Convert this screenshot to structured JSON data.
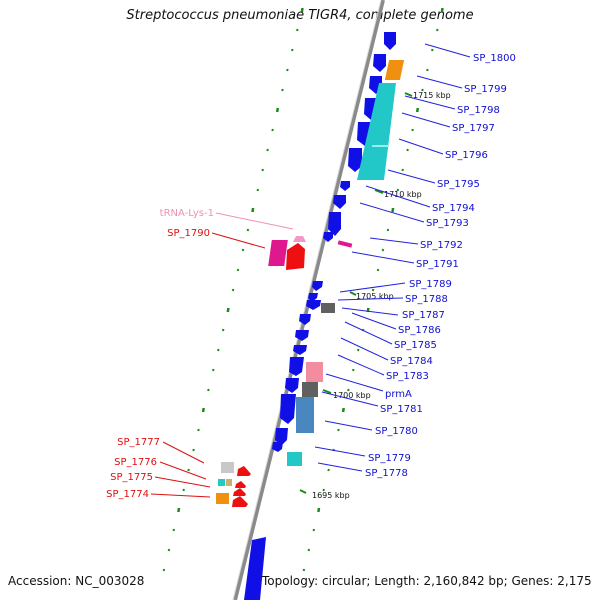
{
  "title": "Streptococcus pneumoniae TIGR4, complete genome",
  "accession": "Accession: NC_003028",
  "topology": "Topology: circular; Length: 2,160,842 bp; Genes: 2,175",
  "colors": {
    "backbone": "#8a8a8a",
    "gene_blue": "#1010e6",
    "gene_cyan": "#22c8c8",
    "gene_orange": "#f09010",
    "gene_red": "#ee1010",
    "gene_magenta": "#e0188e",
    "gene_pink": "#f48ca0",
    "gene_gray": "#606060",
    "gene_steel": "#4a86c0",
    "label_blue": "#1010d0",
    "label_red": "#dd1010",
    "label_pink": "#f090b0",
    "tick_green": "#1a8a1a"
  },
  "scale_labels": [
    "1715 kbp",
    "1710 kbp",
    "1705 kbp",
    "1700 kbp",
    "1695 kbp"
  ],
  "right_labels": [
    "SP_1800",
    "SP_1799",
    "SP_1798",
    "SP_1797",
    "SP_1796",
    "SP_1795",
    "SP_1794",
    "SP_1793",
    "SP_1792",
    "SP_1791",
    "SP_1789",
    "SP_1788",
    "SP_1787",
    "SP_1786",
    "SP_1785",
    "SP_1784",
    "SP_1783",
    "prmA",
    "SP_1781",
    "SP_1780",
    "SP_1779",
    "SP_1778"
  ],
  "left_labels": [
    "tRNA-Lys-1",
    "SP_1790",
    "SP_1777",
    "SP_1776",
    "SP_1775",
    "SP_1774"
  ]
}
